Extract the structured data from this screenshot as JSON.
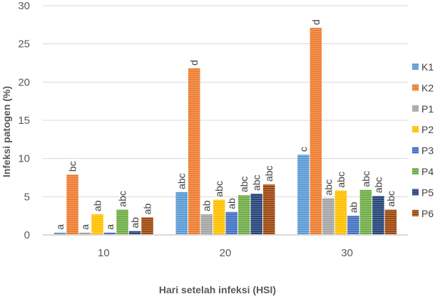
{
  "chart_data": {
    "type": "bar",
    "title": "",
    "xlabel": "Hari setelah infeksi (HSI)",
    "ylabel": "Infeksi patogen (%)",
    "ylim": [
      0,
      30
    ],
    "yticks": [
      0,
      5,
      10,
      15,
      20,
      25,
      30
    ],
    "categories": [
      "10",
      "20",
      "30"
    ],
    "grid": true,
    "legend_position": "right",
    "series": [
      {
        "name": "K1",
        "color": "#5B9BD5",
        "values": [
          0.3,
          5.6,
          10.5
        ],
        "labels": [
          "a",
          "abc",
          "c"
        ]
      },
      {
        "name": "K2",
        "color": "#ED7D31",
        "values": [
          7.9,
          21.8,
          27.1
        ],
        "labels": [
          "bc",
          "d",
          "d"
        ]
      },
      {
        "name": "P1",
        "color": "#A5A5A5",
        "values": [
          0.3,
          2.7,
          4.8
        ],
        "labels": [
          "a",
          "ab",
          "abc"
        ]
      },
      {
        "name": "P2",
        "color": "#FFC000",
        "values": [
          2.7,
          4.6,
          5.8
        ],
        "labels": [
          "ab",
          "abc",
          "abc"
        ]
      },
      {
        "name": "P3",
        "color": "#4472C4",
        "values": [
          0.3,
          3.0,
          2.5
        ],
        "labels": [
          "a",
          "ab",
          "ab"
        ]
      },
      {
        "name": "P4",
        "color": "#70AD47",
        "values": [
          3.3,
          5.2,
          5.9
        ],
        "labels": [
          "abc",
          "abc",
          "abc"
        ]
      },
      {
        "name": "P5",
        "color": "#264478",
        "values": [
          0.5,
          5.4,
          5.1
        ],
        "labels": [
          "ab",
          "abc",
          "abc"
        ]
      },
      {
        "name": "P6",
        "color": "#9E480E",
        "values": [
          2.3,
          6.6,
          3.3
        ],
        "labels": [
          "ab",
          "abc",
          "abc"
        ]
      }
    ]
  }
}
